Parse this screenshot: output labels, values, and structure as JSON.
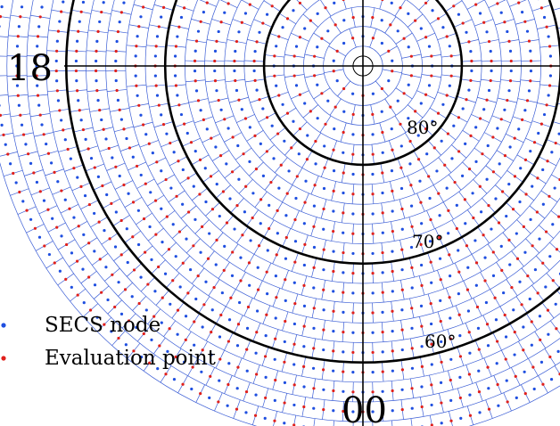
{
  "labels": {
    "mlt_left": "18",
    "mlt_bottom": "00",
    "lat_80": "80°",
    "lat_70": "70°",
    "lat_60": "60°"
  },
  "legend": {
    "node_label": "SECS node",
    "eval_label": "Evaluation point",
    "node_color": "#1f4fe0",
    "eval_color": "#e0201c"
  },
  "colors": {
    "grid": "#3d5fd6",
    "axes": "#000000",
    "background": "#ffffff"
  },
  "grid": {
    "pole_circle_colat": 1,
    "latitude_circles": [
      80,
      70,
      60
    ],
    "outer_boundary_lat": 52,
    "cell_size_deg": 2
  }
}
